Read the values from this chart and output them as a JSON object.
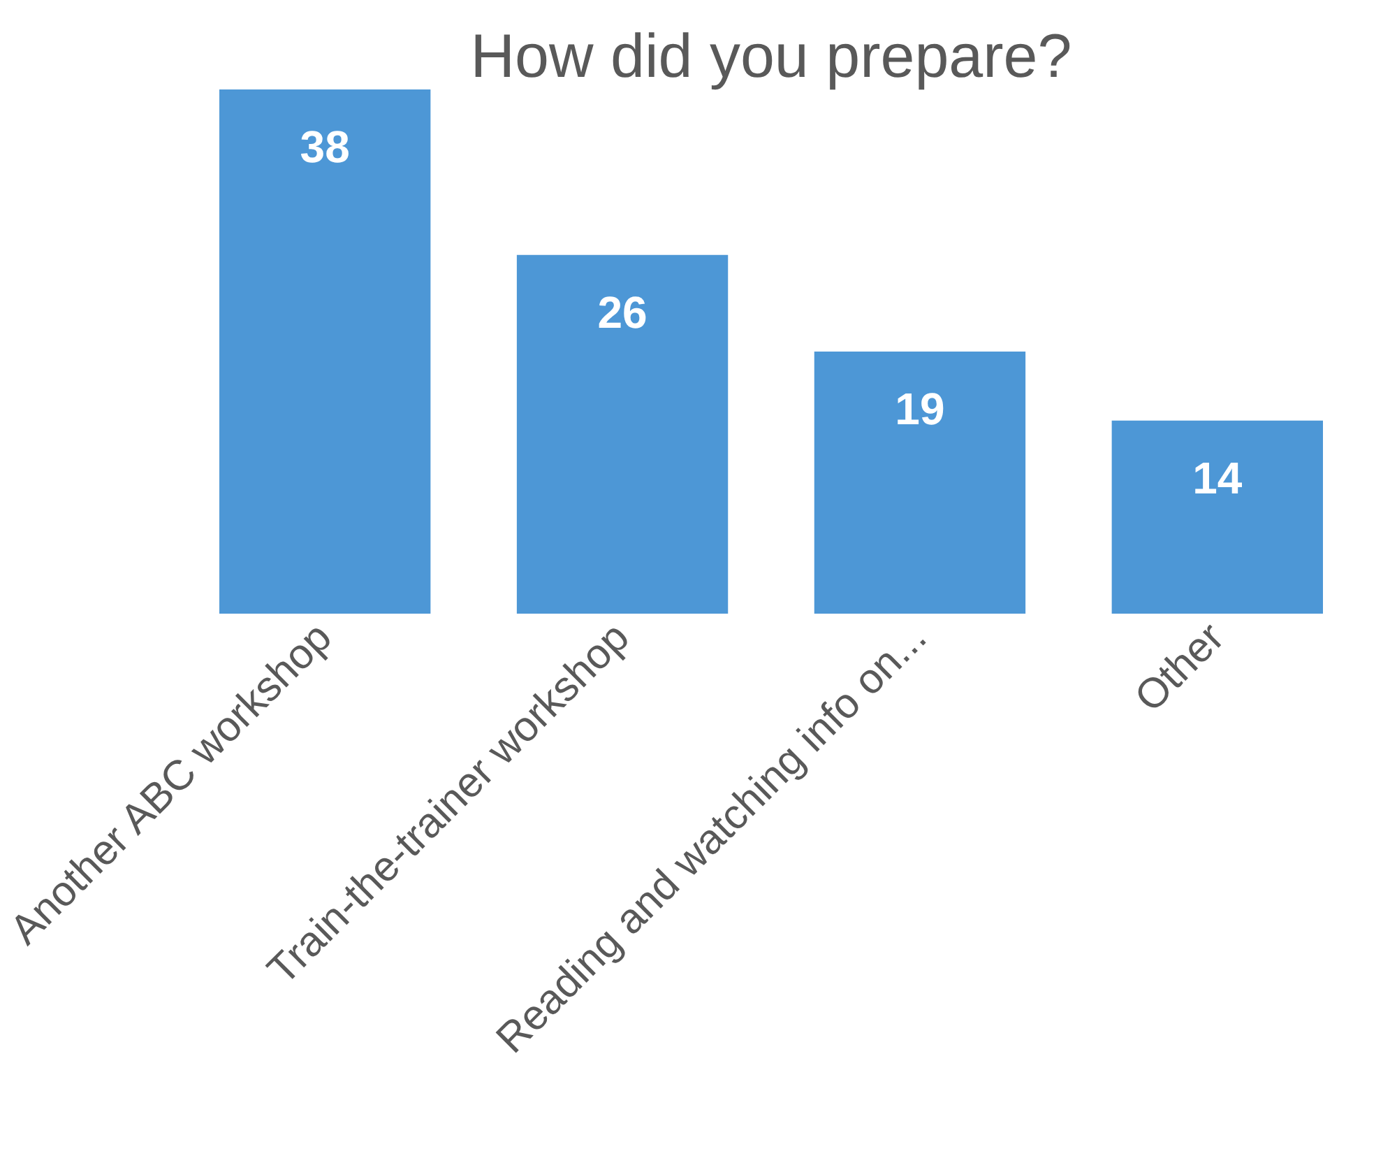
{
  "chart_data": {
    "type": "bar",
    "title": "How did you prepare?",
    "categories": [
      "Another ABC workshop",
      "Train-the-trainer workshop",
      "Reading and watching info on...",
      "Other"
    ],
    "values": [
      38,
      26,
      19,
      14
    ],
    "color": "#4d97d6",
    "data_labels": true,
    "tick_labels": "x"
  }
}
